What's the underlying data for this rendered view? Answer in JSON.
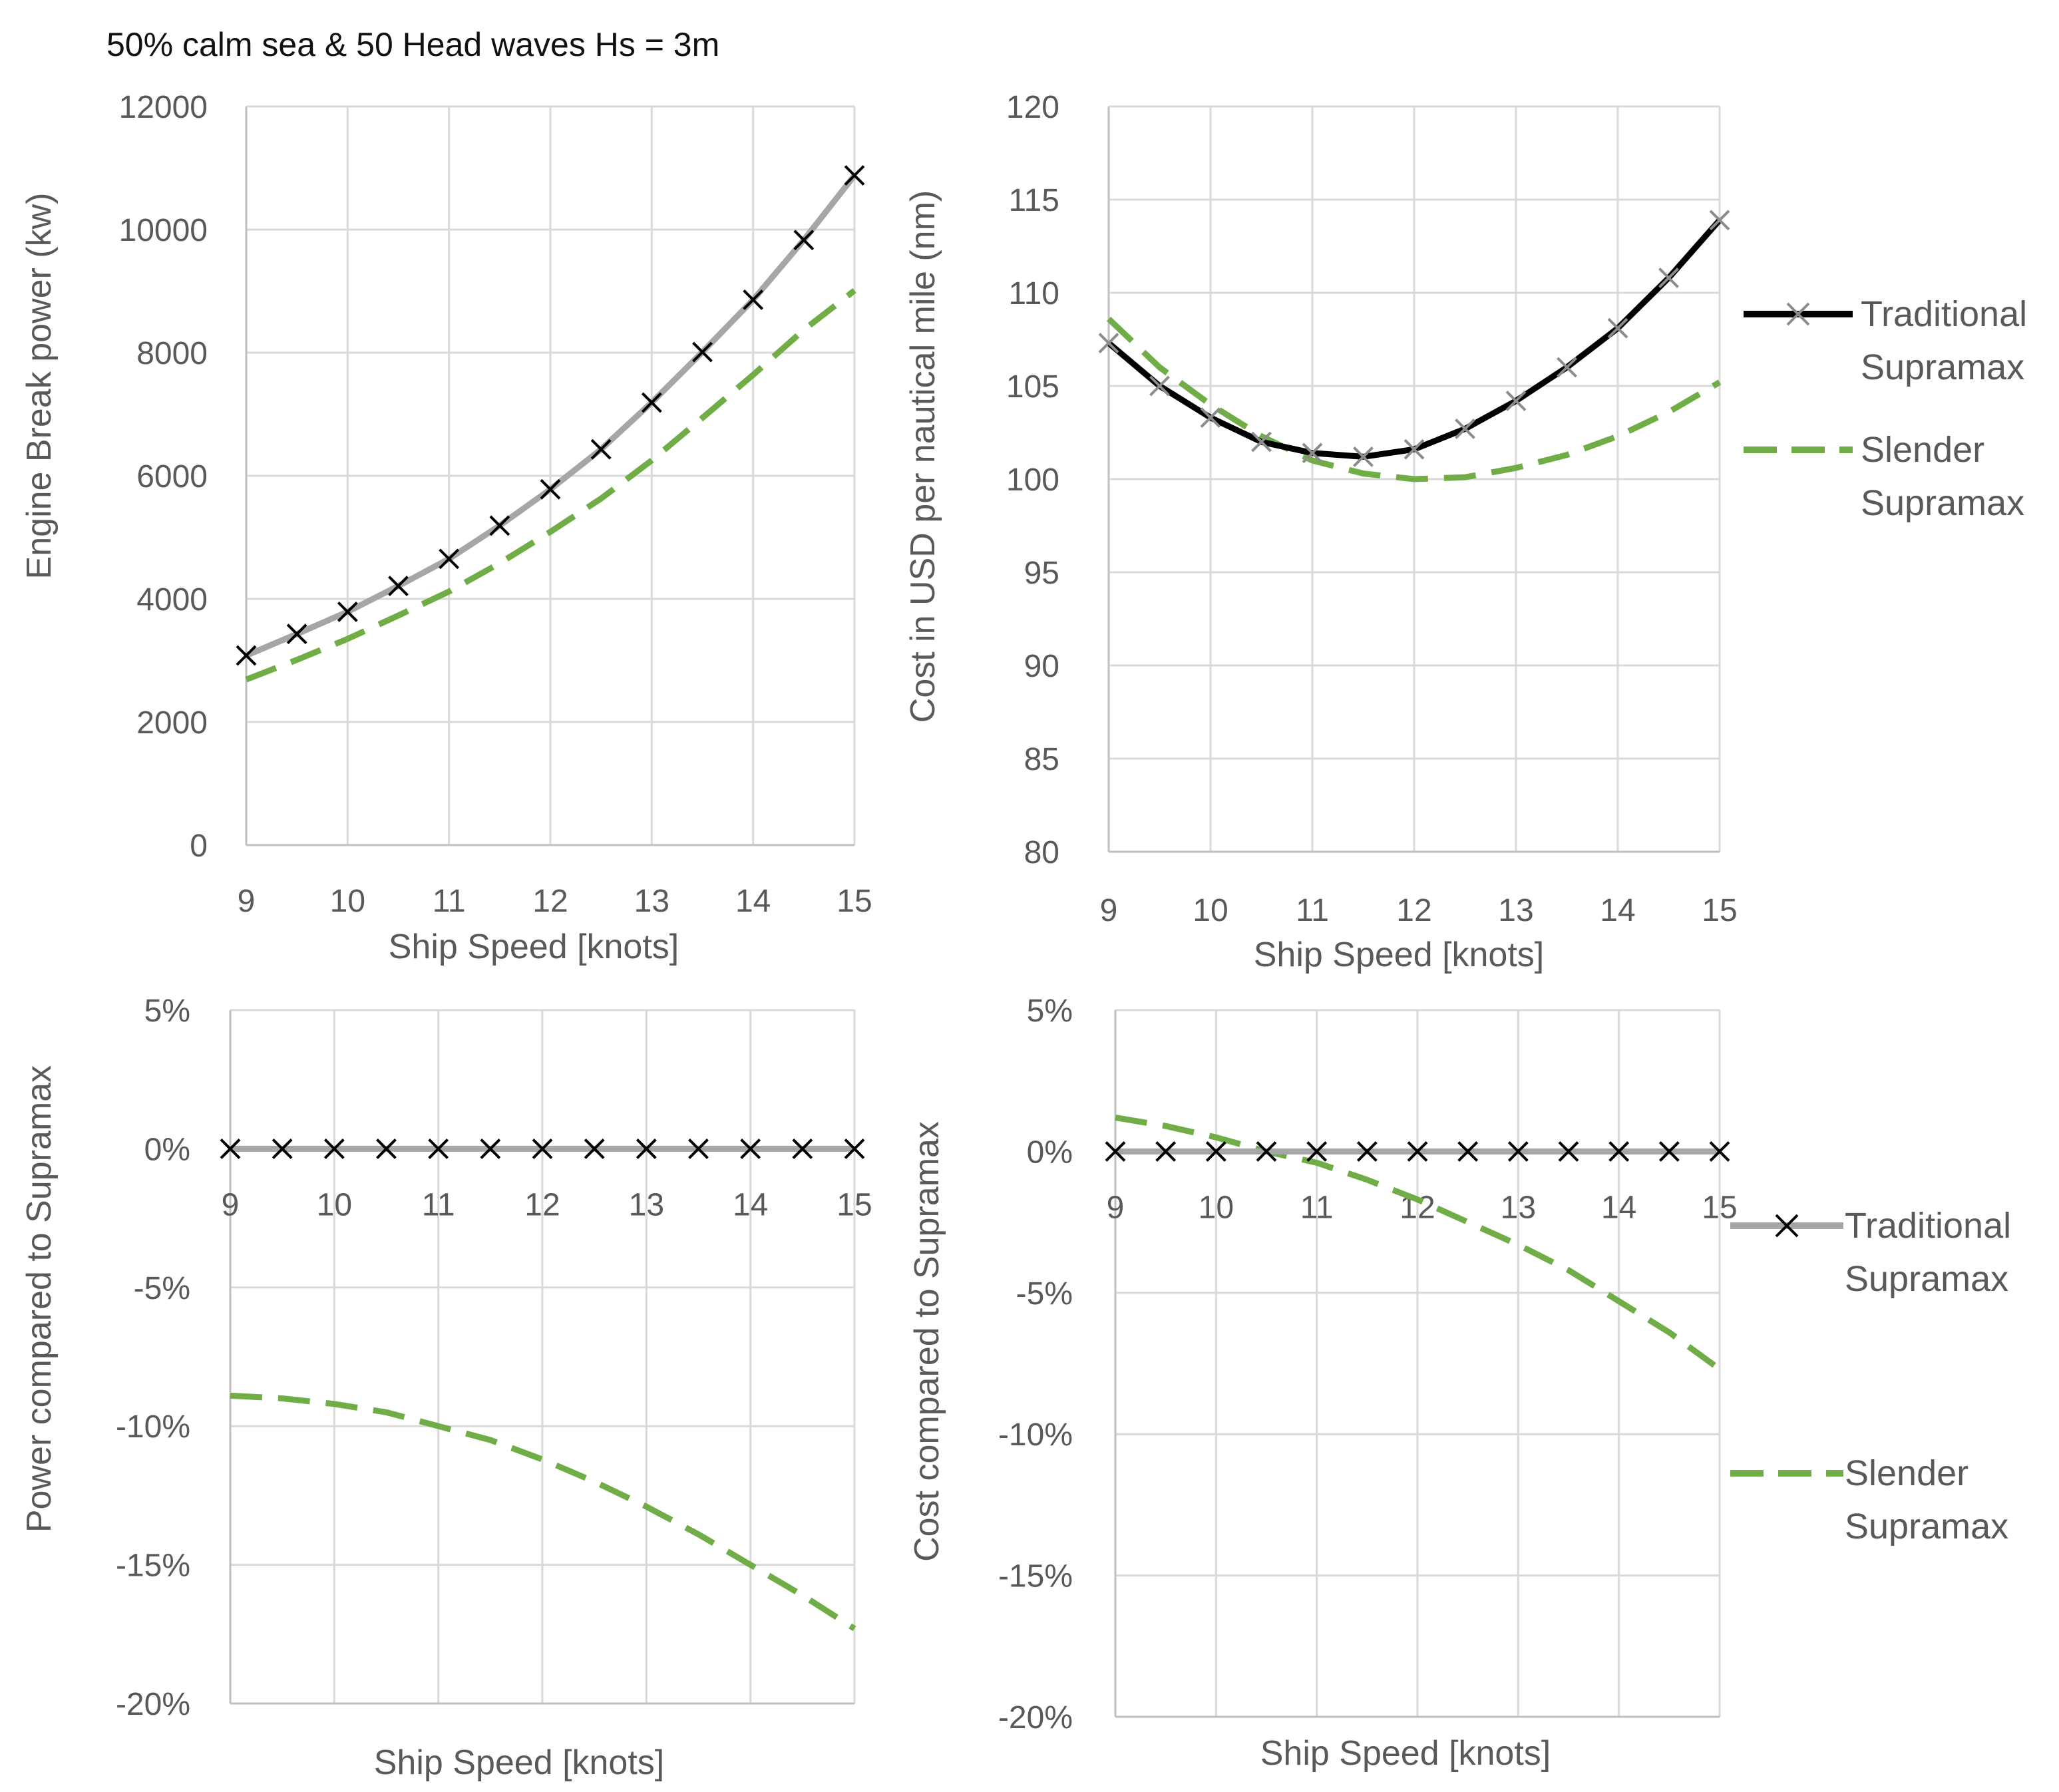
{
  "figure_title": "50% calm sea & 50 Head waves Hs = 3m",
  "colors": {
    "traditional_line_1": "#a6a6a6",
    "traditional_line_2": "#000000",
    "slender": "#70ad47",
    "marker": "#000000",
    "marker_alt": "#8c8c8c",
    "grid": "#d9d9d9",
    "text": "#595959"
  },
  "chart_data": [
    {
      "id": "power",
      "type": "line",
      "title": "",
      "xlabel": "Ship Speed [knots]",
      "ylabel": "Engine Break power (kw)",
      "xlim": [
        9,
        15
      ],
      "ylim": [
        0,
        12000
      ],
      "x_ticks": [
        9,
        10,
        11,
        12,
        13,
        14,
        15
      ],
      "y_ticks": [
        0,
        2000,
        4000,
        6000,
        8000,
        10000,
        12000
      ],
      "y_tick_labels": [
        "0",
        "2000",
        "4000",
        "6000",
        "8000",
        "10000",
        "12000"
      ],
      "x": [
        9,
        9.5,
        10,
        10.5,
        11,
        11.5,
        12,
        12.5,
        13,
        13.5,
        14,
        14.5,
        15
      ],
      "series": [
        {
          "name": "Traditional Supramax",
          "style": "solid-gray-x",
          "values": [
            3080,
            3430,
            3790,
            4210,
            4650,
            5190,
            5780,
            6430,
            7190,
            8010,
            8860,
            9830,
            10880
          ]
        },
        {
          "name": "Slender Supramax",
          "style": "dashed-green",
          "values": [
            2690,
            3010,
            3350,
            3730,
            4120,
            4580,
            5090,
            5630,
            6250,
            6940,
            7640,
            8370,
            9010
          ]
        }
      ]
    },
    {
      "id": "cost",
      "type": "line",
      "title": "",
      "xlabel": "Ship Speed [knots]",
      "ylabel": "Cost in USD per nautical mile (nm)",
      "xlim": [
        9,
        15
      ],
      "ylim": [
        80,
        120
      ],
      "x_ticks": [
        9,
        10,
        11,
        12,
        13,
        14,
        15
      ],
      "y_ticks": [
        80,
        85,
        90,
        95,
        100,
        105,
        110,
        115,
        120
      ],
      "y_tick_labels": [
        "80",
        "85",
        "90",
        "95",
        "100",
        "105",
        "110",
        "115",
        "120"
      ],
      "x": [
        9,
        9.5,
        10,
        10.5,
        11,
        11.5,
        12,
        12.5,
        13,
        13.5,
        14,
        14.5,
        15
      ],
      "series": [
        {
          "name": "Traditional Supramax",
          "style": "solid-black-x",
          "values": [
            107.3,
            105.0,
            103.3,
            102.0,
            101.4,
            101.2,
            101.6,
            102.7,
            104.2,
            106.0,
            108.1,
            110.8,
            113.9
          ]
        },
        {
          "name": "Slender Supramax",
          "style": "dashed-green",
          "values": [
            108.6,
            106.0,
            104.0,
            102.3,
            101.0,
            100.3,
            100.0,
            100.1,
            100.6,
            101.3,
            102.3,
            103.6,
            105.2
          ]
        }
      ],
      "legend": {
        "placement": "right",
        "items": [
          [
            "Traditional",
            "Supramax"
          ],
          [
            "Slender",
            "Supramax"
          ]
        ]
      }
    },
    {
      "id": "power_rel",
      "type": "line",
      "title": "",
      "xlabel": "Ship Speed [knots]",
      "ylabel": "Power compared to Supramax",
      "xlim": [
        9,
        15
      ],
      "ylim": [
        -0.2,
        0.05
      ],
      "x_ticks": [
        9,
        10,
        11,
        12,
        13,
        14,
        15
      ],
      "y_ticks": [
        -0.2,
        -0.15,
        -0.1,
        -0.05,
        0,
        0.05
      ],
      "y_tick_labels": [
        "-20%",
        "-15%",
        "-10%",
        "-5%",
        "0%",
        "5%"
      ],
      "x": [
        9,
        9.5,
        10,
        10.5,
        11,
        11.5,
        12,
        12.5,
        13,
        13.5,
        14,
        14.5,
        15
      ],
      "series": [
        {
          "name": "Traditional Supramax",
          "style": "solid-gray-x",
          "values": [
            0,
            0,
            0,
            0,
            0,
            0,
            0,
            0,
            0,
            0,
            0,
            0,
            0
          ]
        },
        {
          "name": "Slender Supramax",
          "style": "dashed-green",
          "values": [
            -0.089,
            -0.09,
            -0.092,
            -0.095,
            -0.1,
            -0.105,
            -0.112,
            -0.12,
            -0.129,
            -0.139,
            -0.15,
            -0.161,
            -0.173
          ]
        }
      ]
    },
    {
      "id": "cost_rel",
      "type": "line",
      "title": "",
      "xlabel": "Ship Speed [knots]",
      "ylabel": "Cost  compared to Supramax",
      "xlim": [
        9,
        15
      ],
      "ylim": [
        -0.2,
        0.05
      ],
      "x_ticks": [
        9,
        10,
        11,
        12,
        13,
        14,
        15
      ],
      "y_ticks": [
        -0.2,
        -0.15,
        -0.1,
        -0.05,
        0,
        0.05
      ],
      "y_tick_labels": [
        "-20%",
        "-15%",
        "-10%",
        "-5%",
        "0%",
        "5%"
      ],
      "x": [
        9,
        9.5,
        10,
        10.5,
        11,
        11.5,
        12,
        12.5,
        13,
        13.5,
        14,
        14.5,
        15
      ],
      "series": [
        {
          "name": "Traditional Supramax",
          "style": "solid-gray-x",
          "values": [
            0,
            0,
            0,
            0,
            0,
            0,
            0,
            0,
            0,
            0,
            0,
            0,
            0
          ]
        },
        {
          "name": "Slender Supramax",
          "style": "dashed-green",
          "values": [
            0.012,
            0.009,
            0.005,
            0.0,
            -0.004,
            -0.01,
            -0.017,
            -0.025,
            -0.033,
            -0.042,
            -0.053,
            -0.064,
            -0.077
          ]
        }
      ],
      "legend": {
        "placement": "right",
        "items": [
          [
            "Traditional",
            "Supramax"
          ],
          [
            "Slender",
            "Supramax"
          ]
        ]
      }
    }
  ]
}
